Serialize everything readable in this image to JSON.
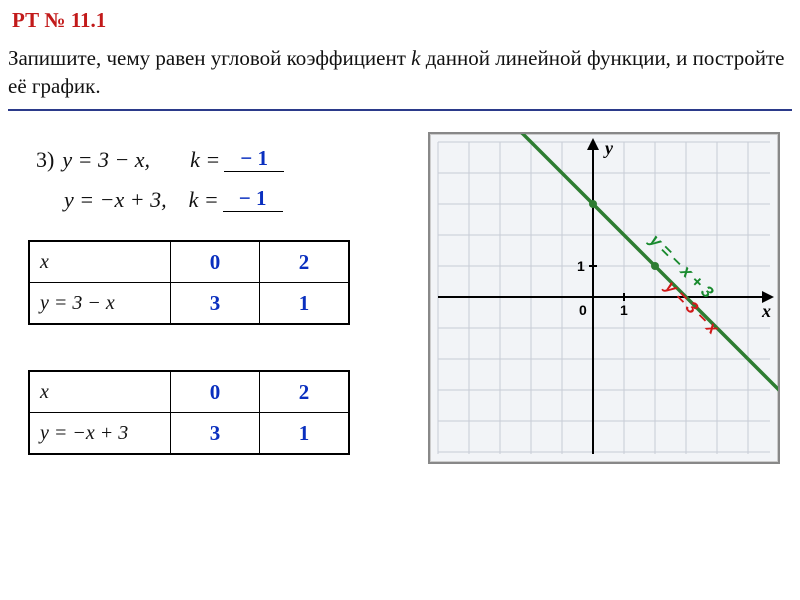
{
  "header": "РТ № 11.1",
  "prompt": {
    "text_parts": [
      "Запишите, чему равен угловой коэффициент ",
      "k",
      " данной линейной функции, и постройте её график."
    ]
  },
  "equations": {
    "num": "3)",
    "eq1": "y = 3 − x,",
    "k1_label": "k =",
    "k1_value": "− 1",
    "eq2": "y = −x + 3,",
    "k2_label": "k =",
    "k2_value": "− 1"
  },
  "table1": {
    "x_label": "x",
    "y_label": "y = 3 − x",
    "xs": [
      "0",
      "2"
    ],
    "ys": [
      "3",
      "1"
    ],
    "fill_color": "#0a2fbf"
  },
  "table2": {
    "x_label": "x",
    "y_label": "y = −x + 3",
    "xs": [
      "0",
      "2"
    ],
    "ys": [
      "3",
      "1"
    ],
    "fill_color": "#0a2fbf"
  },
  "graph": {
    "cols": 11,
    "rows": 10,
    "cell": 31,
    "origin_col": 5,
    "origin_row": 5,
    "line": {
      "x1": -3.6,
      "y1": 6.6,
      "x2": 6.6,
      "y2": -3.6
    },
    "grid_color": "#c7ccd6",
    "line_color": "#2e7d32",
    "axis_labels": {
      "x": "x",
      "y": "y",
      "o": "0",
      "one": "1"
    },
    "eq_label_green": "y = − x + 3",
    "eq_label_red": "y = 3 − x"
  }
}
